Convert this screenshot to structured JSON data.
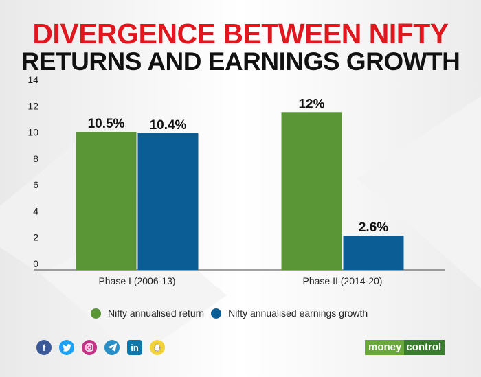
{
  "title_line1": "DIVERGENCE BETWEEN NIFTY",
  "title_line2": "RETURNS AND EARNINGS GROWTH",
  "chart_data": {
    "type": "bar",
    "categories": [
      "Phase I (2006-13)",
      "Phase II (2014-20)"
    ],
    "series": [
      {
        "name": "Nifty annualised return",
        "values": [
          10.5,
          12
        ],
        "labels": [
          "10.5%",
          "12%"
        ],
        "color": "#5a9636"
      },
      {
        "name": "Nifty annualised earnings growth",
        "values": [
          10.4,
          2.6
        ],
        "labels": [
          "10.4%",
          "2.6%"
        ],
        "color": "#0a5d95"
      }
    ],
    "yticks": [
      0,
      2,
      4,
      6,
      8,
      10,
      12,
      14
    ],
    "ylim": [
      0,
      14
    ],
    "grid": false,
    "legend": "bottom"
  },
  "social_icons": [
    "facebook-icon",
    "twitter-icon",
    "instagram-icon",
    "telegram-icon",
    "linkedin-icon",
    "snapchat-icon"
  ],
  "brand": {
    "part1": "money",
    "part2": "control"
  }
}
